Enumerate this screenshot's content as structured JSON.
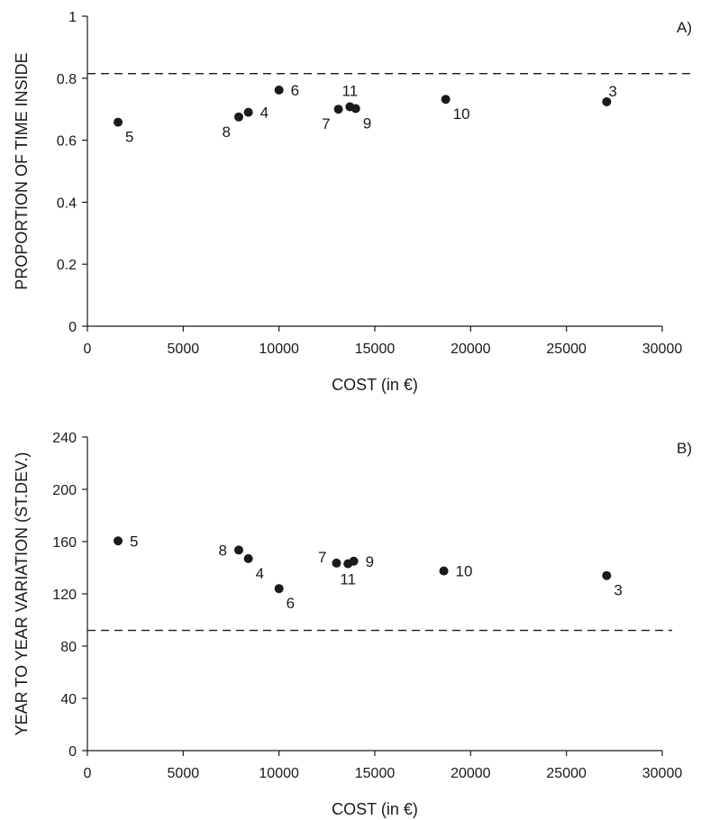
{
  "chart_data": [
    {
      "type": "scatter",
      "panel_label": "A)",
      "xlabel": "COST (in €)",
      "ylabel": "PROPORTION OF TIME INSIDE",
      "xlim": [
        0,
        30000
      ],
      "ylim": [
        0,
        1
      ],
      "x_ticks": [
        0,
        5000,
        10000,
        15000,
        20000,
        25000,
        30000
      ],
      "x_tick_labels": [
        "0",
        "5000",
        "10000",
        "15000",
        "20000",
        "25000",
        "30000"
      ],
      "y_ticks": [
        0,
        0.2,
        0.4,
        0.6,
        0.8,
        1
      ],
      "y_tick_labels": [
        "0",
        "0.2",
        "0.4",
        "0.6",
        "0.8",
        "1"
      ],
      "reference_line": 0.815,
      "grid": false,
      "points": [
        {
          "label": "5",
          "x": 1600,
          "y": 0.658,
          "label_pos": "below-right"
        },
        {
          "label": "8",
          "x": 7900,
          "y": 0.675,
          "label_pos": "below-left"
        },
        {
          "label": "4",
          "x": 8400,
          "y": 0.69,
          "label_pos": "right"
        },
        {
          "label": "6",
          "x": 10000,
          "y": 0.762,
          "label_pos": "right"
        },
        {
          "label": "7",
          "x": 13100,
          "y": 0.7,
          "label_pos": "below-left"
        },
        {
          "label": "11",
          "x": 13700,
          "y": 0.708,
          "label_pos": "above"
        },
        {
          "label": "9",
          "x": 14000,
          "y": 0.702,
          "label_pos": "below-right"
        },
        {
          "label": "10",
          "x": 18700,
          "y": 0.732,
          "label_pos": "below-right"
        },
        {
          "label": "3",
          "x": 27100,
          "y": 0.724,
          "label_pos": "above-right"
        }
      ]
    },
    {
      "type": "scatter",
      "panel_label": "B)",
      "xlabel": "COST (in €)",
      "ylabel": "YEAR TO YEAR VARIATION (ST.DEV.)",
      "xlim": [
        0,
        30000
      ],
      "ylim": [
        0,
        240
      ],
      "x_ticks": [
        0,
        5000,
        10000,
        15000,
        20000,
        25000,
        30000
      ],
      "x_tick_labels": [
        "0",
        "5000",
        "10000",
        "15000",
        "20000",
        "25000",
        "30000"
      ],
      "y_ticks": [
        0,
        40,
        80,
        120,
        160,
        200,
        240
      ],
      "y_tick_labels": [
        "0",
        "40",
        "80",
        "120",
        "160",
        "200",
        "240"
      ],
      "reference_line": 92,
      "grid": false,
      "points": [
        {
          "label": "5",
          "x": 1600,
          "y": 160.5,
          "label_pos": "right"
        },
        {
          "label": "8",
          "x": 7900,
          "y": 153.5,
          "label_pos": "left"
        },
        {
          "label": "4",
          "x": 8400,
          "y": 147,
          "label_pos": "below-right"
        },
        {
          "label": "6",
          "x": 10000,
          "y": 124,
          "label_pos": "below-right"
        },
        {
          "label": "7",
          "x": 13000,
          "y": 143.5,
          "label_pos": "above-left"
        },
        {
          "label": "11",
          "x": 13600,
          "y": 143,
          "label_pos": "below"
        },
        {
          "label": "9",
          "x": 13900,
          "y": 145,
          "label_pos": "right"
        },
        {
          "label": "10",
          "x": 18600,
          "y": 137.5,
          "label_pos": "right"
        },
        {
          "label": "3",
          "x": 27100,
          "y": 134,
          "label_pos": "below-right"
        }
      ]
    }
  ]
}
